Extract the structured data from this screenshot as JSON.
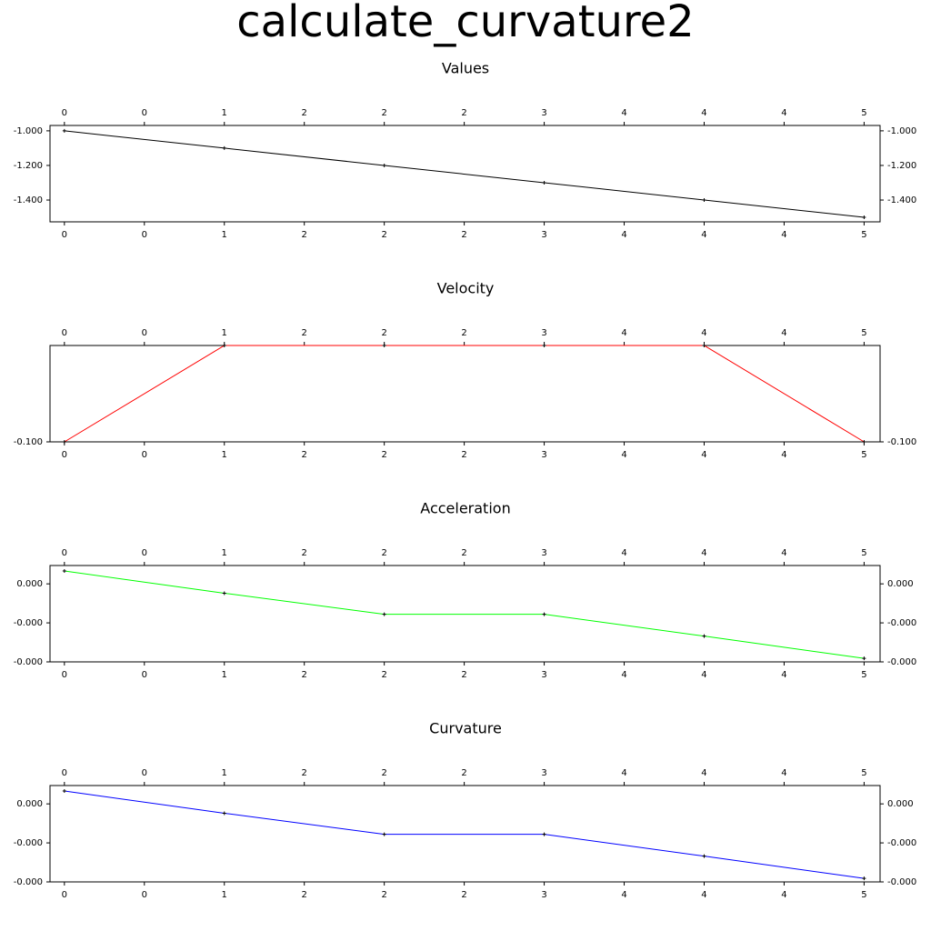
{
  "title": "calculate_curvature2",
  "chart_data": [
    {
      "type": "line",
      "title": "Values",
      "x": [
        0,
        1,
        2,
        3,
        4,
        5
      ],
      "series": [
        {
          "color": "#000000",
          "values": [
            -1.0,
            -1.1,
            -1.2,
            -1.3,
            -1.4,
            -1.5
          ]
        }
      ],
      "xlim": [
        -0.09,
        5.1
      ],
      "xticks": [
        0,
        {
          "value": 0.5,
          "label": "0"
        },
        1,
        {
          "value": 1.5,
          "label": "2"
        },
        2,
        {
          "value": 2.5,
          "label": "2"
        },
        3,
        {
          "value": 3.5,
          "label": "4"
        },
        4,
        {
          "value": 4.5,
          "label": "4"
        },
        5
      ],
      "ylim": [
        -1.526,
        -0.969
      ],
      "yticks": [
        {
          "value": -1.0,
          "label": "-1.000"
        },
        {
          "value": -1.2,
          "label": "-1.200"
        },
        {
          "value": -1.4,
          "label": "-1.400"
        }
      ]
    },
    {
      "type": "line",
      "title": "Velocity",
      "x": [
        0,
        1,
        2,
        3,
        4,
        5
      ],
      "series": [
        {
          "color": "#ff0000",
          "values": [
            -0.1,
            0,
            0,
            0,
            0,
            -0.1
          ]
        }
      ],
      "xlim": [
        -0.09,
        5.1
      ],
      "xticks": [
        0,
        {
          "value": 0.5,
          "label": "0"
        },
        1,
        {
          "value": 1.5,
          "label": "2"
        },
        2,
        {
          "value": 2.5,
          "label": "2"
        },
        3,
        {
          "value": 3.5,
          "label": "4"
        },
        4,
        {
          "value": 4.5,
          "label": "4"
        },
        5
      ],
      "ylim": [
        -0.1,
        0
      ],
      "yticks": [
        {
          "value": -0.1,
          "label": "-0.100"
        }
      ]
    },
    {
      "type": "line",
      "title": "Acceleration",
      "x": [
        0,
        1,
        2,
        3,
        4,
        5
      ],
      "series": [
        {
          "color": "#00ff00",
          "values": [
            3.3e-05,
            -2.4e-05,
            -7.8e-05,
            -7.8e-05,
            -0.000134,
            -0.000191
          ]
        }
      ],
      "xlim": [
        -0.09,
        5.1
      ],
      "xticks": [
        0,
        {
          "value": 0.5,
          "label": "0"
        },
        1,
        {
          "value": 1.5,
          "label": "2"
        },
        2,
        {
          "value": 2.5,
          "label": "2"
        },
        3,
        {
          "value": 3.5,
          "label": "4"
        },
        4,
        {
          "value": 4.5,
          "label": "4"
        },
        5
      ],
      "ylim": [
        -0.0002,
        4.7e-05
      ],
      "yticks": [
        {
          "value": 0,
          "label": "0.000"
        },
        {
          "value": -0.0001,
          "label": "-0.000"
        },
        {
          "value": -0.0002,
          "label": "-0.000"
        }
      ]
    },
    {
      "type": "line",
      "title": "Curvature",
      "x": [
        0,
        1,
        2,
        3,
        4,
        5
      ],
      "series": [
        {
          "color": "#0000ff",
          "values": [
            3.3e-05,
            -2.4e-05,
            -7.8e-05,
            -7.8e-05,
            -0.000134,
            -0.000191
          ]
        }
      ],
      "xlim": [
        -0.09,
        5.1
      ],
      "xticks": [
        0,
        {
          "value": 0.5,
          "label": "0"
        },
        1,
        {
          "value": 1.5,
          "label": "2"
        },
        2,
        {
          "value": 2.5,
          "label": "2"
        },
        3,
        {
          "value": 3.5,
          "label": "4"
        },
        4,
        {
          "value": 4.5,
          "label": "4"
        },
        5
      ],
      "ylim": [
        -0.0002,
        4.7e-05
      ],
      "yticks": [
        {
          "value": 0,
          "label": "0.000"
        },
        {
          "value": -0.0001,
          "label": "-0.000"
        },
        {
          "value": -0.0002,
          "label": "-0.000"
        }
      ]
    }
  ]
}
